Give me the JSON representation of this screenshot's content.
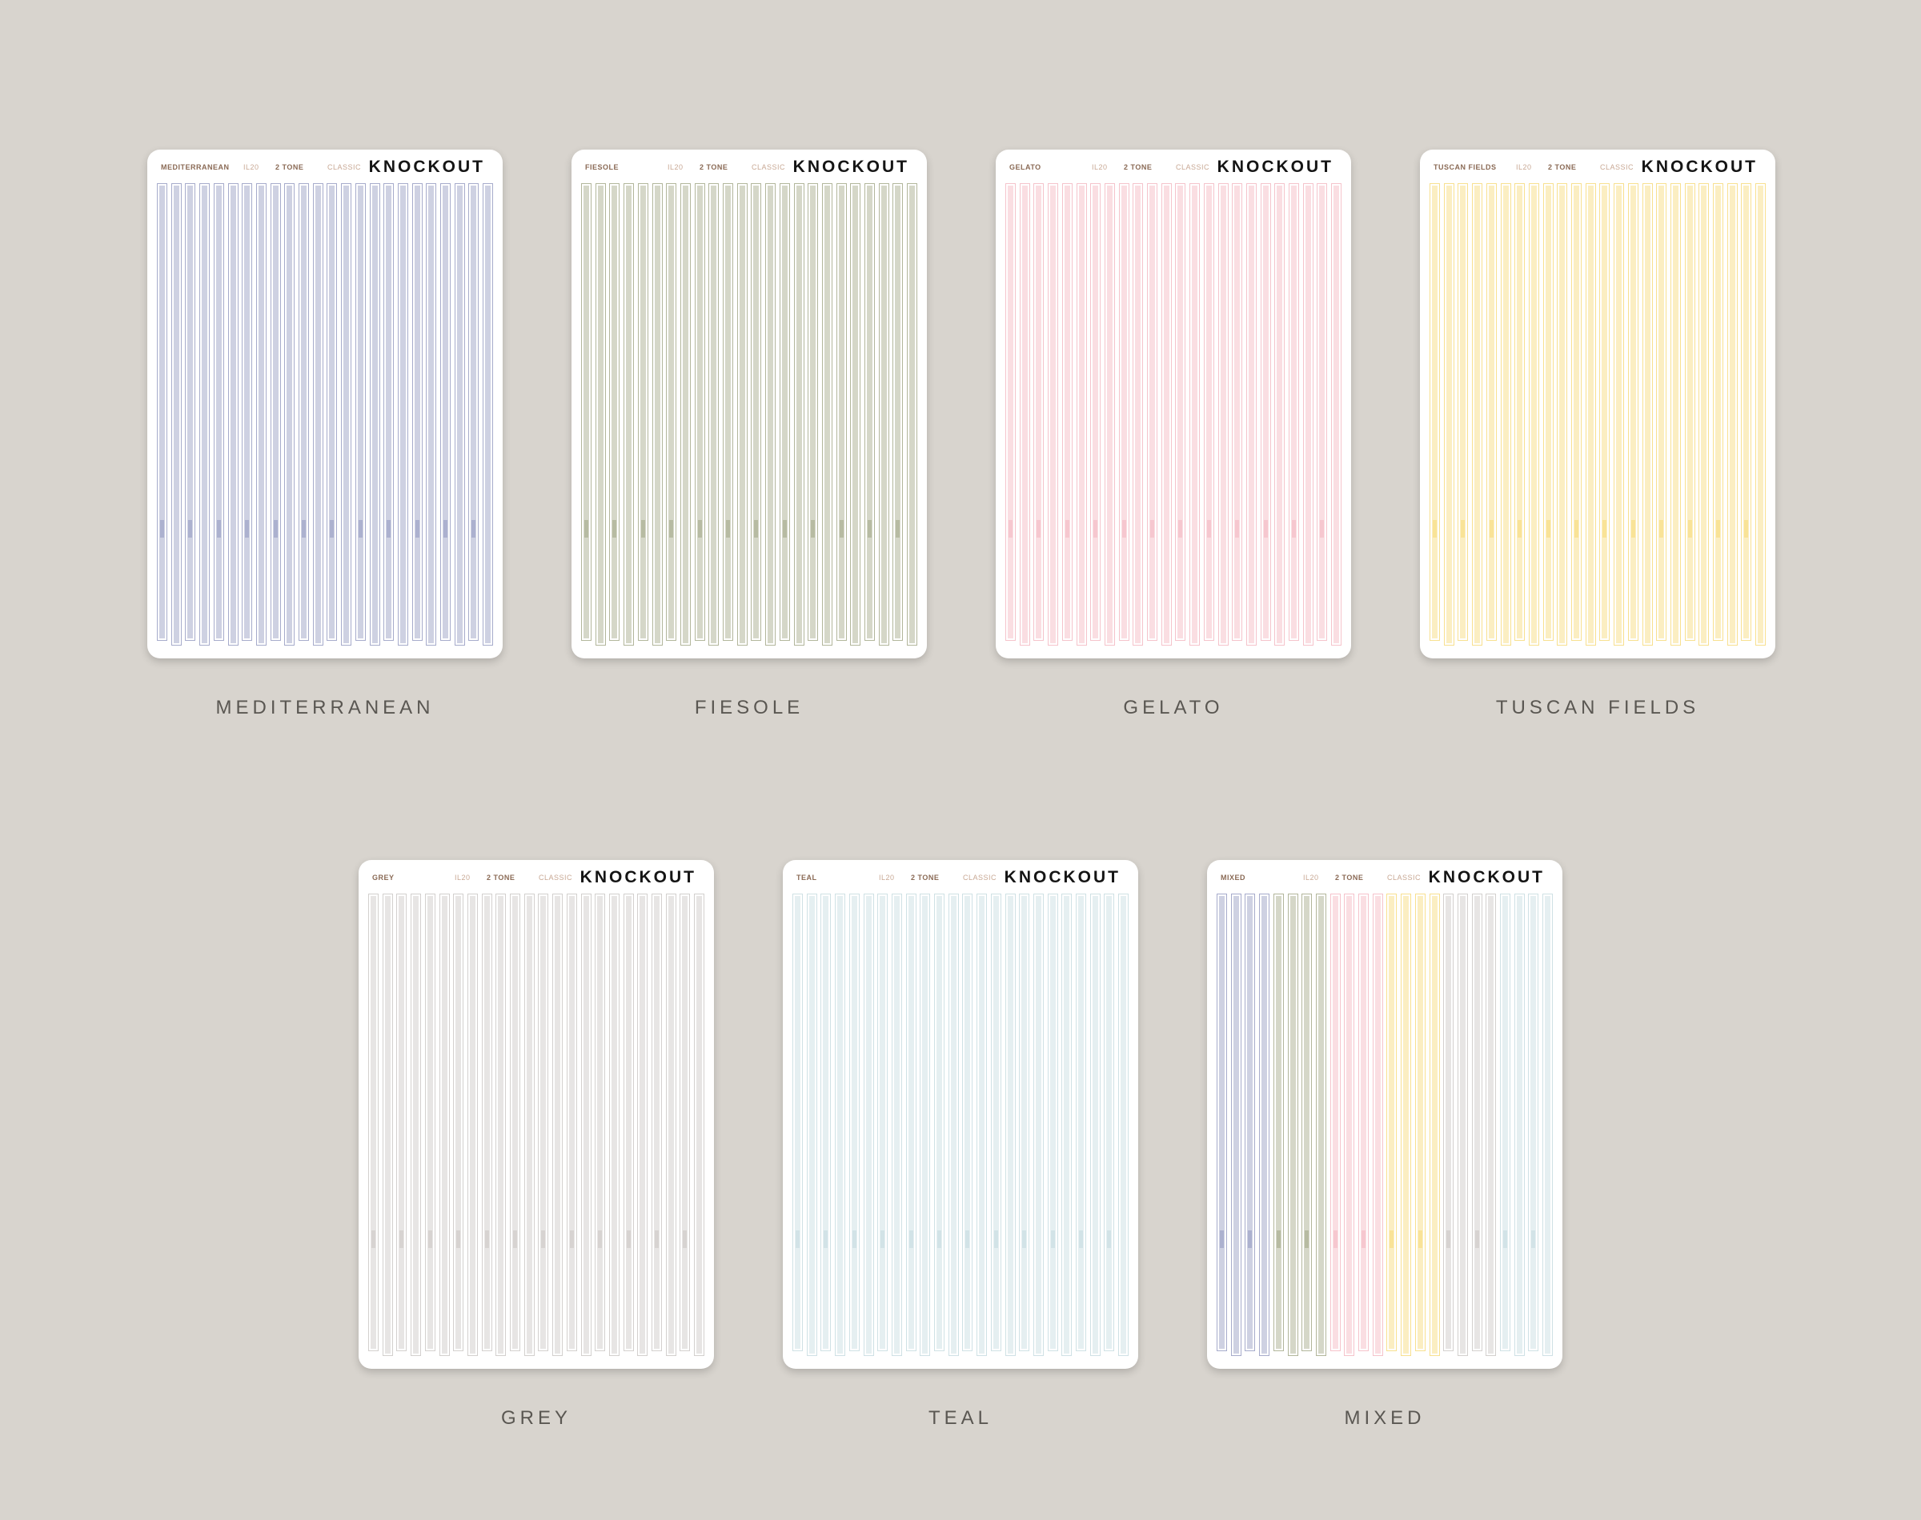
{
  "products": [
    {
      "sheet": {
        "name": "MEDITERRANEAN",
        "code": "IL20",
        "tone": "2 TONE",
        "style": "CLASSIC",
        "brand": "KNOCKOUT"
      },
      "caption": "MEDITERRANEAN",
      "colors": [
        "#a6abcb"
      ]
    },
    {
      "sheet": {
        "name": "FIESOLE",
        "code": "IL20",
        "tone": "2 TONE",
        "style": "CLASSIC",
        "brand": "KNOCKOUT"
      },
      "caption": "FIESOLE",
      "colors": [
        "#b2b69b"
      ]
    },
    {
      "sheet": {
        "name": "GELATO",
        "code": "IL20",
        "tone": "2 TONE",
        "style": "CLASSIC",
        "brand": "KNOCKOUT"
      },
      "caption": "GELATO",
      "colors": [
        "#f5c3cb"
      ]
    },
    {
      "sheet": {
        "name": "TUSCAN FIELDS",
        "code": "IL20",
        "tone": "2 TONE",
        "style": "CLASSIC",
        "brand": "KNOCKOUT"
      },
      "caption": "TUSCAN FIELDS",
      "colors": [
        "#f8e08f"
      ]
    },
    {
      "sheet": {
        "name": "GREY",
        "code": "IL20",
        "tone": "2 TONE",
        "style": "CLASSIC",
        "brand": "KNOCKOUT"
      },
      "caption": "GREY",
      "colors": [
        "#d3d0ce"
      ]
    },
    {
      "sheet": {
        "name": "TEAL",
        "code": "IL20",
        "tone": "2 TONE",
        "style": "CLASSIC",
        "brand": "KNOCKOUT"
      },
      "caption": "TEAL",
      "colors": [
        "#cfe1e5"
      ]
    },
    {
      "sheet": {
        "name": "MIXED",
        "code": "IL20",
        "tone": "2 TONE",
        "style": "CLASSIC",
        "brand": "KNOCKOUT"
      },
      "caption": "MIXED",
      "colors": [
        "#a6abcb",
        "#b2b69b",
        "#f5c3cb",
        "#f8e08f",
        "#d3d0ce",
        "#cfe1e5"
      ]
    }
  ]
}
